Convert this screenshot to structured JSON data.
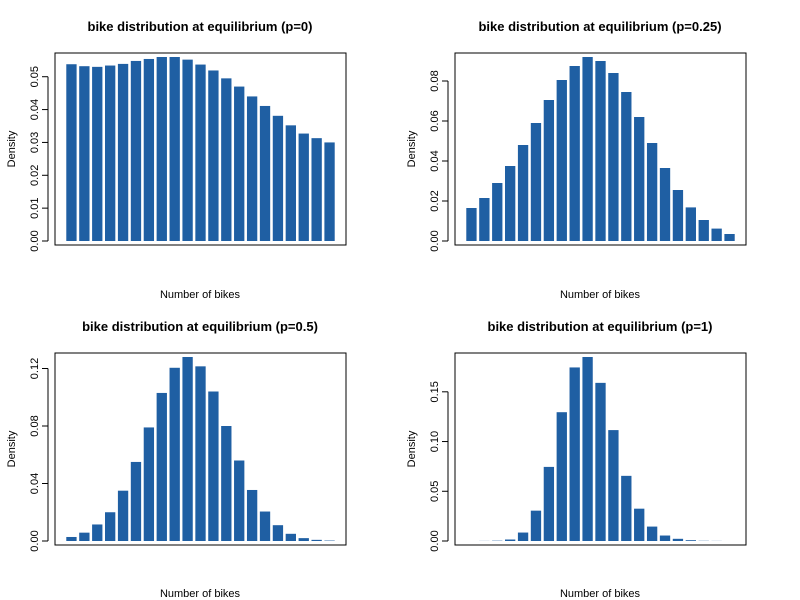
{
  "chart_data": [
    {
      "type": "bar",
      "title": "bike distribution at equilibrium (p=0)",
      "xlabel": "Number of bikes",
      "ylabel": "Density",
      "ylim": [
        0,
        0.056
      ],
      "yticks": [
        0.0,
        0.01,
        0.02,
        0.03,
        0.04,
        0.05
      ],
      "ytick_labels": [
        "0.00",
        "0.01",
        "0.02",
        "0.03",
        "0.04",
        "0.05"
      ],
      "bar_color": "#1f5fa3",
      "values": [
        0.0538,
        0.0532,
        0.053,
        0.0534,
        0.0539,
        0.0548,
        0.0554,
        0.056,
        0.056,
        0.0552,
        0.0537,
        0.0519,
        0.0495,
        0.047,
        0.044,
        0.0411,
        0.0381,
        0.0352,
        0.0327,
        0.0313,
        0.03
      ]
    },
    {
      "type": "bar",
      "title": "bike distribution at equilibrium (p=0.25)",
      "xlabel": "Number of bikes",
      "ylabel": "Density",
      "ylim": [
        0,
        0.092
      ],
      "yticks": [
        0.0,
        0.02,
        0.04,
        0.06,
        0.08
      ],
      "ytick_labels": [
        "0.00",
        "0.02",
        "0.04",
        "0.06",
        "0.08"
      ],
      "bar_color": "#1f5fa3",
      "values": [
        0.0165,
        0.0215,
        0.029,
        0.0375,
        0.048,
        0.059,
        0.0705,
        0.0805,
        0.0875,
        0.092,
        0.09,
        0.084,
        0.0745,
        0.062,
        0.049,
        0.0365,
        0.0255,
        0.0168,
        0.0105,
        0.0062,
        0.0035
      ]
    },
    {
      "type": "bar",
      "title": "bike distribution at equilibrium (p=0.5)",
      "xlabel": "Number of bikes",
      "ylabel": "Density",
      "ylim": [
        0,
        0.128
      ],
      "yticks": [
        0.0,
        0.04,
        0.08,
        0.12
      ],
      "ytick_labels": [
        "0.00",
        "0.04",
        "0.08",
        "0.12"
      ],
      "bar_color": "#1f5fa3",
      "values": [
        0.0028,
        0.0058,
        0.0115,
        0.02,
        0.035,
        0.055,
        0.079,
        0.103,
        0.1205,
        0.128,
        0.1215,
        0.104,
        0.08,
        0.056,
        0.0355,
        0.0205,
        0.011,
        0.005,
        0.002,
        0.0008,
        0.0003
      ]
    },
    {
      "type": "bar",
      "title": "bike distribution at equilibrium (p=1)",
      "xlabel": "Number of bikes",
      "ylabel": "Density",
      "ylim": [
        0,
        0.185
      ],
      "yticks": [
        0.0,
        0.05,
        0.1,
        0.15
      ],
      "ytick_labels": [
        "0.00",
        "0.05",
        "0.10",
        "0.15"
      ],
      "bar_color": "#1f5fa3",
      "values": [
        0.0,
        0.0001,
        0.0003,
        0.0015,
        0.0085,
        0.0305,
        0.0745,
        0.1295,
        0.1745,
        0.185,
        0.159,
        0.1115,
        0.0655,
        0.0325,
        0.0145,
        0.0055,
        0.0022,
        0.0008,
        0.0002,
        0.0001,
        0.0
      ]
    }
  ]
}
